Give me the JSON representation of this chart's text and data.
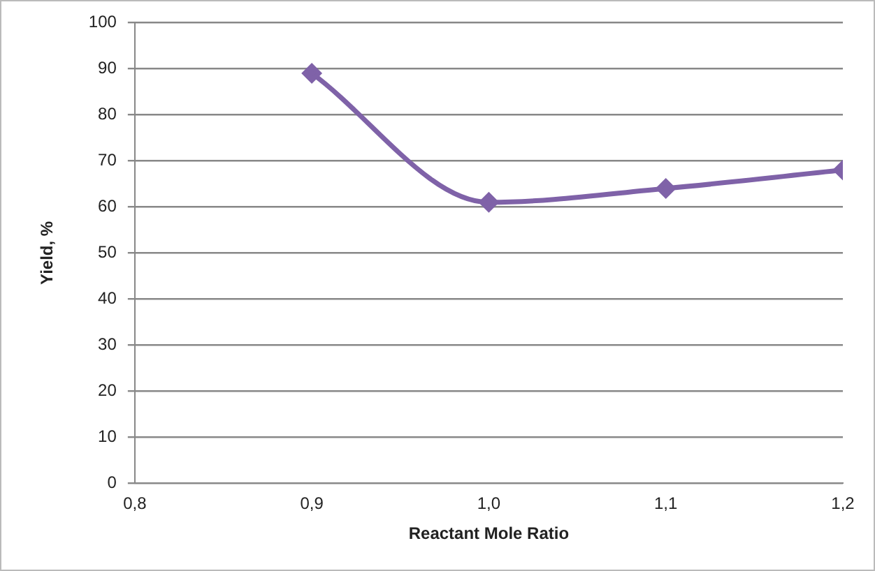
{
  "chart_data": {
    "type": "line",
    "xlabel": "Reactant Mole Ratio",
    "ylabel": "Yield, %",
    "x": [
      0.9,
      1.0,
      1.1,
      1.2
    ],
    "series": [
      {
        "color": "#7f62a8",
        "values": [
          89,
          61,
          64,
          68
        ]
      }
    ],
    "xlim": [
      0.8,
      1.2
    ],
    "xticks": [
      {
        "value": 0.8,
        "label": "0,8"
      },
      {
        "value": 0.9,
        "label": "0,9"
      },
      {
        "value": 1.0,
        "label": "1,0"
      },
      {
        "value": 1.1,
        "label": "1,1"
      },
      {
        "value": 1.2,
        "label": "1,2"
      }
    ],
    "ylim": [
      0,
      100
    ],
    "yticks": [
      0,
      10,
      20,
      30,
      40,
      50,
      60,
      70,
      80,
      90,
      100
    ],
    "grid": "y",
    "legend": false,
    "marker": "diamond",
    "line_style": "solid"
  }
}
